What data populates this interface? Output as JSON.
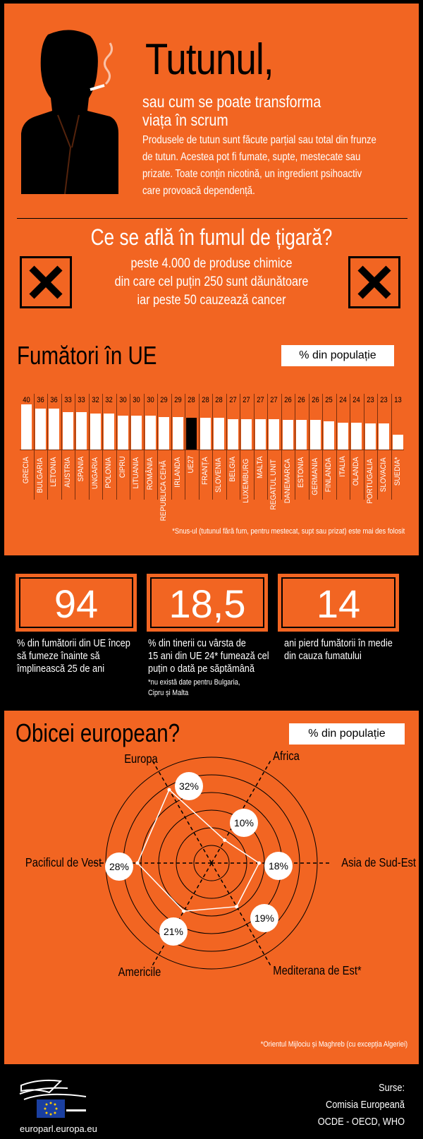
{
  "header": {
    "title": "Tutunul,",
    "subtitle_line1": "sau cum se poate transforma",
    "subtitle_line2": "viața în scrum",
    "intro_line1": "Produsele de tutun sunt făcute parțial sau total din frunze",
    "intro_line2": "de tutun. Acestea pot fi fumate, supte, mestecate sau",
    "intro_line3": "prizate. Toate conțin nicotină, un ingredient psihoactiv",
    "intro_line4": "care provoacă dependență."
  },
  "smoke": {
    "heading": "Ce se află în fumul de țigară?",
    "line1": "peste 4.000 de produse chimice",
    "line2": "din care cel puțin 250 sunt dăunătoare",
    "line3": "iar peste 50 cauzează cancer",
    "hazard_icon": "hazard-x-icon"
  },
  "smokers": {
    "heading": "Fumători în UE",
    "unit": "% din populație",
    "footnote": "*Snus-ul (tutunul fără fum, pentru mestecat, supt sau prizat) este mai des folosit"
  },
  "chart_data": [
    {
      "type": "bar",
      "title": "Fumători în UE",
      "ylabel": "% din populație",
      "categories": [
        "GRECIA",
        "BULGARIA",
        "LETONIA",
        "AUSTRIA",
        "SPANIA",
        "UNGARIA",
        "POLONIA",
        "CIPRU",
        "LITUANIA",
        "ROMÂNIA",
        "REPUBLICA CEHĂ",
        "IRLANDA",
        "UE27",
        "FRANȚA",
        "SLOVENIA",
        "BELGIA",
        "LUXEMBURG",
        "MALTA",
        "REGATUL UNIT",
        "DANEMARCA",
        "ESTONIA",
        "GERMANIA",
        "FINLANDA",
        "ITALIA",
        "OLANDA",
        "PORTUGALIA",
        "SLOVACIA",
        "SUEDIA*"
      ],
      "values": [
        40,
        36,
        36,
        33,
        33,
        32,
        32,
        30,
        30,
        30,
        29,
        29,
        28,
        28,
        28,
        27,
        27,
        27,
        27,
        26,
        26,
        26,
        25,
        24,
        24,
        23,
        23,
        13
      ],
      "highlight": "UE27",
      "colors": {
        "bar": "#ffffff",
        "highlight": "#000000"
      }
    },
    {
      "type": "radar",
      "title": "Obicei european?",
      "ylabel": "% din populație",
      "categories": [
        "Europa",
        "Africa",
        "Asia de Sud-Est",
        "Mediterana de Est*",
        "Americile",
        "Pacificul de Vest"
      ],
      "values": [
        32,
        10,
        18,
        19,
        21,
        28
      ],
      "value_labels": [
        "32%",
        "10%",
        "18%",
        "19%",
        "21%",
        "28%"
      ]
    }
  ],
  "stats": [
    {
      "value": "94",
      "text1": "% din fumătorii din UE încep",
      "text2": "să fumeze înainte să",
      "text3": "împlinească 25 de ani"
    },
    {
      "value": "18,5",
      "text1": "% din tinerii cu vârsta de",
      "text2": "15 ani din UE 24* fumează cel",
      "text3": "puțin o dată pe săptămână",
      "note1": "*nu există date pentru Bulgaria,",
      "note2": "Cipru și Malta"
    },
    {
      "value": "14",
      "text1": "ani pierd fumătorii în medie",
      "text2": "din cauza fumatului"
    }
  ],
  "habit": {
    "heading": "Obicei european?",
    "unit": "% din populație",
    "footnote": "*Orientul Mijlociu și Maghreb (cu excepția Algeriei)"
  },
  "footer": {
    "site": "europarl.europa.eu",
    "sources_label": "Surse:",
    "source1": "Comisia Europeană",
    "source2": "OCDE - OECD, WHO",
    "logo": "european-parliament-logo"
  },
  "colors": {
    "orange": "#f26522",
    "black": "#000000",
    "white": "#ffffff"
  }
}
